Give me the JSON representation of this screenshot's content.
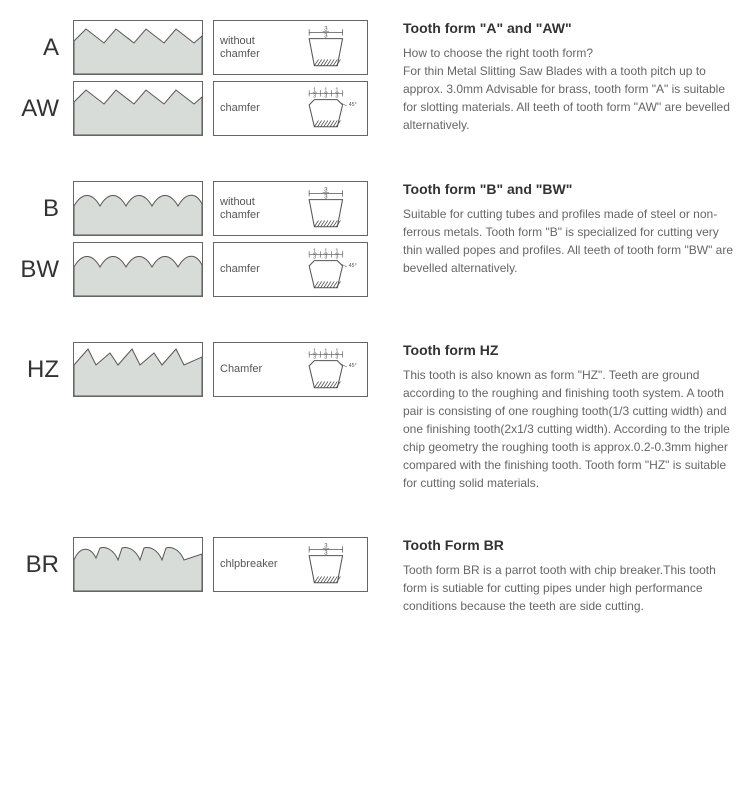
{
  "sections": [
    {
      "id": "A",
      "title": "Tooth form \"A\" and \"AW\"",
      "body": "How to choose the right tooth form?\nFor thin Metal Slitting Saw Blades with a tooth pitch up to approx. 3.0mm Advisable for brass, tooth form \"A\" is suitable for slotting materials. All teeth of tooth form \"AW\" are bevelled alternatively.",
      "rows": [
        {
          "label": "A",
          "chamfer_text": "without\nchamfer",
          "chamfered": false,
          "topFrac": "3/3",
          "sideFracs": null,
          "teeth": "sawA"
        },
        {
          "label": "AW",
          "chamfer_text": "chamfer",
          "chamfered": true,
          "topFrac": null,
          "sideFracs": [
            "1/3",
            "1/3",
            "1/3"
          ],
          "teeth": "sawA"
        }
      ]
    },
    {
      "id": "B",
      "title": "Tooth form \"B\" and \"BW\"",
      "body": "Suitable for cutting tubes and profiles made of steel or non-ferrous metals. Tooth form \"B\" is specialized for cutting very thin walled popes and profiles. All teeth of tooth form \"BW\" are bevelled alternatively.",
      "rows": [
        {
          "label": "B",
          "chamfer_text": "without\nchamfer",
          "chamfered": false,
          "topFrac": "3/3",
          "sideFracs": null,
          "teeth": "sawB"
        },
        {
          "label": "BW",
          "chamfer_text": "chamfer",
          "chamfered": true,
          "topFrac": null,
          "sideFracs": [
            "1/3",
            "1/3",
            "1/3"
          ],
          "teeth": "sawB"
        }
      ]
    },
    {
      "id": "HZ",
      "title": "Tooth form HZ",
      "body": "This tooth is also known as form \"HZ\". Teeth are ground according to the roughing and finishing tooth system. A tooth pair is consisting of one roughing tooth(1/3 cutting width) and one finishing tooth(2x1/3 cutting width). According to the triple chip geometry the roughing tooth is approx.0.2-0.3mm higher compared with the finishing tooth. Tooth form \"HZ\" is suitable for cutting solid materials.",
      "rows": [
        {
          "label": "HZ",
          "chamfer_text": "Chamfer",
          "chamfered": true,
          "topFrac": null,
          "sideFracs": [
            "1/3",
            "1/3",
            "1/3"
          ],
          "teeth": "sawHZ"
        }
      ]
    },
    {
      "id": "BR",
      "title": "Tooth Form BR",
      "body": "Tooth form BR is a parrot tooth with chip breaker.This tooth form is sutiable for cutting pipes under high performance conditions because the teeth are side cutting.",
      "rows": [
        {
          "label": "BR",
          "chamfer_text": "chlpbreaker",
          "chamfered": false,
          "topFrac": "3/3",
          "sideFracs": null,
          "teeth": "sawBR"
        }
      ]
    }
  ],
  "colors": {
    "profile_fill": "#d8dcd8",
    "profile_stroke": "#555555",
    "hatch": "#444444",
    "text": "#666666",
    "heading": "#333333"
  }
}
